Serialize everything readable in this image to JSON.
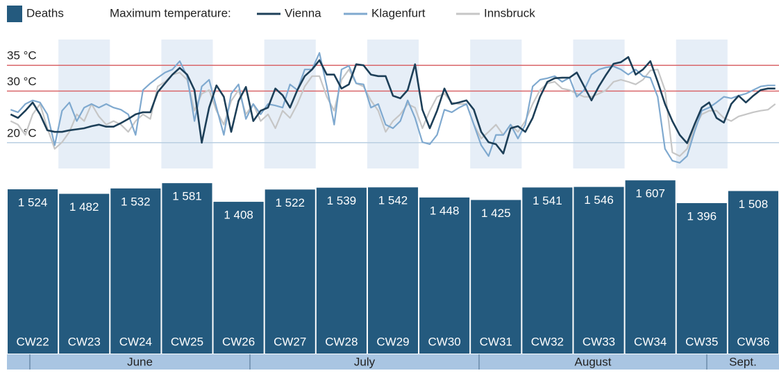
{
  "chart_data": [
    {
      "type": "line",
      "legend_title": "Maximum temperature:",
      "ylim": [
        15,
        40
      ],
      "yticks": [
        {
          "value": 20,
          "label": "20 °C"
        },
        {
          "value": 30,
          "label": "30 °C"
        },
        {
          "value": 35,
          "label": "35 °C"
        }
      ],
      "grid_colors": [
        "#b9cfe2",
        "#d9666a",
        "#d9666a"
      ],
      "series": [
        {
          "name": "Vienna",
          "color": "#1d3f58",
          "values": [
            25.5,
            24.8,
            26.2,
            27.8,
            25.5,
            22.4,
            22.1,
            22.1,
            22.4,
            22.6,
            22.8,
            23.2,
            23.5,
            23.1,
            23.1,
            23.8,
            24.6,
            25.5,
            25.9,
            25.9,
            29.8,
            31.5,
            33.2,
            34.5,
            33.2,
            30.2,
            20,
            26.8,
            31.1,
            28.9,
            22.1,
            28.1,
            30.8,
            24.2,
            26.2,
            26.8,
            30.5,
            29.2,
            26.8,
            30.2,
            32.9,
            34.2,
            36,
            33.2,
            33.2,
            30.5,
            31.3,
            35.2,
            35,
            33.2,
            32.9,
            32.9,
            29.1,
            28.6,
            30.2,
            35.2,
            26.4,
            22.8,
            26.2,
            30.5,
            27.5,
            27.8,
            28.2,
            26.4,
            22.1,
            20.1,
            19.7,
            17.9,
            22.8,
            23.2,
            22.1,
            24.8,
            28.9,
            31.8,
            32.5,
            32.6,
            32.6,
            33.6,
            30.9,
            28.2,
            30.9,
            33.2,
            35.3,
            35.6,
            36.6,
            33.2,
            34.2,
            35.8,
            31.8,
            27.5,
            24.2,
            21.5,
            19.9,
            23.5,
            26.8,
            27.8,
            24.8,
            23.9,
            27.5,
            29.1,
            27.8,
            29.1,
            30.2,
            30.5,
            30.5
          ]
        },
        {
          "name": "Klagenfurt",
          "color": "#7fa9cf",
          "values": [
            26.4,
            25.9,
            27.5,
            28.2,
            27.8,
            25.5,
            19.5,
            26.2,
            27.8,
            24.2,
            26.8,
            27.5,
            26.8,
            27.5,
            26.8,
            26.4,
            25.5,
            21.5,
            30.2,
            31.5,
            32.6,
            33.6,
            34.2,
            35.8,
            32.9,
            24.2,
            30.9,
            32.2,
            26.8,
            21.5,
            29.5,
            31.3,
            24.6,
            27.5,
            25.5,
            27.5,
            27.2,
            26.8,
            31.3,
            30.2,
            34.2,
            34.2,
            37.4,
            30.9,
            23.5,
            34.2,
            34.9,
            31.5,
            31.3,
            26.8,
            27.5,
            23.5,
            22.8,
            24.2,
            28.2,
            24.8,
            20.1,
            19.7,
            21.5,
            26.4,
            25.9,
            26.8,
            27.5,
            23.5,
            19.5,
            17.4,
            21.5,
            21.5,
            23.5,
            20.8,
            23.5,
            30.9,
            32.2,
            32.5,
            32.9,
            31.8,
            32.6,
            28.9,
            30.2,
            33.2,
            34.2,
            34.6,
            34.8,
            34.2,
            33.2,
            34.2,
            32.9,
            32.6,
            28.9,
            18.8,
            16.5,
            16.1,
            17.4,
            22.1,
            26.2,
            26.8,
            27.8,
            28.9,
            28.6,
            29.1,
            29.5,
            30.2,
            30.9,
            31.1,
            31.1
          ]
        },
        {
          "name": "Innsbruck",
          "color": "#c6c6c6",
          "values": [
            24.2,
            23.5,
            21.5,
            25.5,
            27.5,
            22.8,
            18.8,
            20.1,
            22.1,
            25.5,
            24.2,
            27.5,
            25.1,
            23.5,
            24.2,
            23.5,
            22.1,
            24.2,
            25.5,
            24.6,
            30.9,
            31.8,
            33.2,
            33.6,
            32.2,
            26.2,
            29.5,
            30.2,
            26.2,
            23.5,
            28.1,
            30.2,
            25.5,
            27.5,
            24.2,
            25.5,
            22.8,
            26.2,
            24.8,
            27.5,
            30.9,
            32.9,
            32.9,
            28.9,
            26.2,
            32.2,
            34.2,
            31.5,
            30.9,
            28.2,
            26.2,
            22.1,
            24.2,
            25.5,
            27.5,
            26.8,
            22.8,
            26.2,
            28.9,
            29.5,
            27.8,
            27.5,
            27.5,
            23.5,
            20.8,
            22.1,
            23.5,
            21.5,
            23.5,
            22.1,
            24.2,
            27.5,
            30.2,
            31.5,
            31.8,
            30.5,
            30.2,
            29.5,
            28.9,
            28.9,
            29.5,
            30.2,
            31.8,
            32.2,
            31.8,
            31.3,
            32.2,
            34,
            34.2,
            30.2,
            18.1,
            17.4,
            18.8,
            22.8,
            25.5,
            26.2,
            26.2,
            24.8,
            24.2,
            25.1,
            25.5,
            25.9,
            26.2,
            26.4,
            27.5
          ]
        }
      ]
    },
    {
      "type": "bar",
      "categories": [
        "CW22",
        "CW23",
        "CW24",
        "CW25",
        "CW26",
        "CW27",
        "CW28",
        "CW29",
        "CW30",
        "CW31",
        "CW32",
        "CW33",
        "CW34",
        "CW35",
        "CW36"
      ],
      "months": [
        "June",
        "July",
        "August",
        "Sept."
      ],
      "ylim": [
        0,
        1640
      ],
      "series": [
        {
          "name": "Deaths",
          "color": "#245a7e",
          "values": [
            1524,
            1482,
            1532,
            1581,
            1408,
            1522,
            1539,
            1542,
            1448,
            1425,
            1541,
            1546,
            1607,
            1396,
            1508
          ],
          "value_labels": [
            "1 524",
            "1 482",
            "1 532",
            "1 581",
            "1 408",
            "1 522",
            "1 539",
            "1 542",
            "1 448",
            "1 425",
            "1 541",
            "1 546",
            "1 607",
            "1 396",
            "1 508"
          ]
        }
      ]
    }
  ]
}
